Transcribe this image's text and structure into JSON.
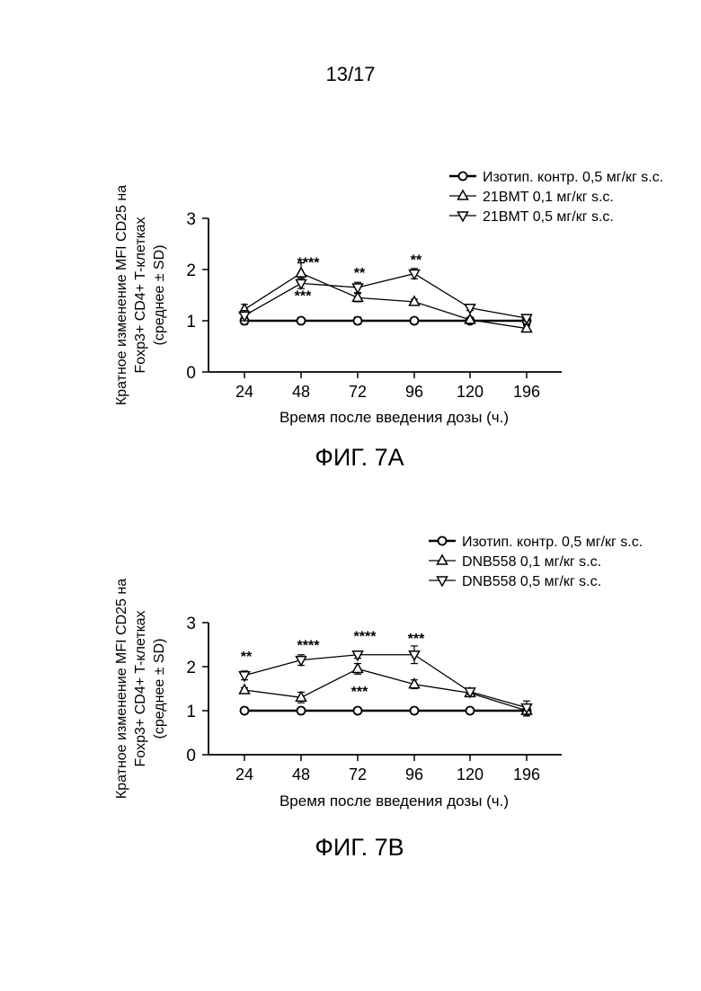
{
  "page": {
    "number": "13/17"
  },
  "chart_data": [
    {
      "type": "line",
      "caption": "ФИГ. 7A",
      "xlabel": "Время после введения дозы (ч.)",
      "ylabel": [
        "Кратное изменение MFI CD25 на",
        "Foxp3+ CD4+ T-клеткaх",
        "(среднее ± SD)"
      ],
      "categories": [
        "24",
        "48",
        "72",
        "96",
        "120",
        "196"
      ],
      "ylim": [
        0,
        3
      ],
      "yticks": [
        "0",
        "1",
        "2",
        "3"
      ],
      "legend_position": "top-right",
      "series": [
        {
          "name": "Изотип. контр. 0,5 мг/кг s.c.",
          "marker": "circle",
          "values": [
            1.0,
            1.0,
            1.0,
            1.0,
            1.0,
            1.0
          ],
          "errors": [
            0.07,
            0.05,
            0.07,
            0.0,
            0.05,
            0.1
          ]
        },
        {
          "name": "21BMT 0,1 мг/кг s.c.",
          "marker": "triangle-up",
          "values": [
            1.22,
            1.93,
            1.45,
            1.37,
            1.02,
            0.85
          ],
          "errors": [
            0.1,
            0.2,
            0.08,
            0.05,
            0.05,
            0.07
          ]
        },
        {
          "name": "21BMT 0,5 мг/кг s.c.",
          "marker": "triangle-down",
          "values": [
            1.1,
            1.73,
            1.65,
            1.92,
            1.25,
            1.05
          ],
          "errors": [
            0.1,
            0.1,
            0.1,
            0.1,
            0.05,
            0.05
          ]
        }
      ],
      "annotations": [
        {
          "category": "48",
          "y": 2.15,
          "text": "****"
        },
        {
          "category": "48",
          "y": 1.5,
          "text": "***"
        },
        {
          "category": "72",
          "y": 1.95,
          "text": "**"
        },
        {
          "category": "96",
          "y": 2.2,
          "text": "**"
        }
      ]
    },
    {
      "type": "line",
      "caption": "ФИГ. 7B",
      "xlabel": "Время после введения дозы (ч.)",
      "ylabel": [
        "Кратное изменение MFI CD25 на",
        "Foxp3+ CD4+ T-клеткaх",
        "(среднее ± SD)"
      ],
      "categories": [
        "24",
        "48",
        "72",
        "96",
        "120",
        "196"
      ],
      "ylim": [
        0,
        3
      ],
      "yticks": [
        "0",
        "1",
        "2",
        "3"
      ],
      "legend_position": "top-right",
      "series": [
        {
          "name": "Изотип. контр. 0,5 мг/кг s.c.",
          "marker": "circle",
          "values": [
            1.0,
            1.0,
            1.0,
            1.0,
            1.0,
            1.0
          ],
          "errors": [
            0.07,
            0.07,
            0.07,
            0.0,
            0.05,
            0.12
          ]
        },
        {
          "name": "DNB558 0,1 мг/кг s.c.",
          "marker": "triangle-up",
          "values": [
            1.47,
            1.3,
            1.95,
            1.6,
            1.4,
            1.0
          ],
          "errors": [
            0.05,
            0.12,
            0.12,
            0.1,
            0.06,
            0.12
          ]
        },
        {
          "name": "DNB558 0,5 мг/кг s.c.",
          "marker": "triangle-down",
          "values": [
            1.8,
            2.15,
            2.27,
            2.27,
            1.43,
            1.07
          ],
          "errors": [
            0.1,
            0.12,
            0.08,
            0.2,
            0.05,
            0.15
          ]
        }
      ],
      "annotations": [
        {
          "category": "24",
          "y": 2.25,
          "text": "**"
        },
        {
          "category": "48",
          "y": 2.5,
          "text": "****"
        },
        {
          "category": "72",
          "y": 2.7,
          "text": "****"
        },
        {
          "category": "72",
          "y": 1.45,
          "text": "***"
        },
        {
          "category": "96",
          "y": 2.65,
          "text": "***"
        }
      ]
    }
  ]
}
